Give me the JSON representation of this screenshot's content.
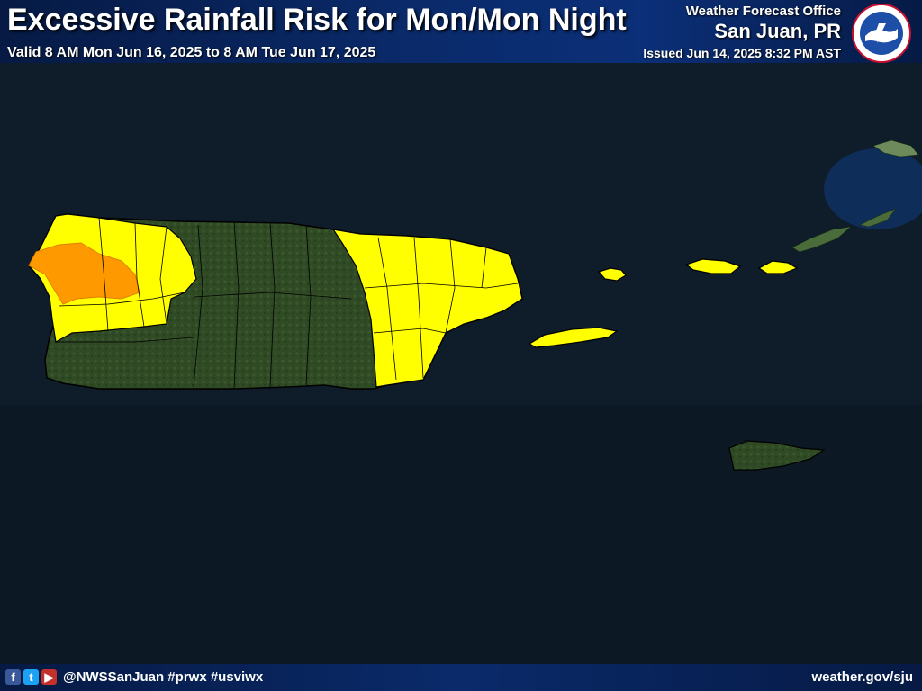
{
  "header": {
    "title": "Excessive Rainfall Risk for Mon/Mon Night",
    "valid": "Valid 8 AM Mon Jun 16, 2025 to 8 AM Tue Jun 17, 2025",
    "office_label": "Weather Forecast Office",
    "office_city": "San Juan, PR",
    "issued": "Issued Jun 14, 2025 8:32 PM AST",
    "logo_icon": "nws-logo-icon"
  },
  "map": {
    "risk_colors": {
      "marginal": "#ffff00",
      "slight": "#ff9900",
      "none": "#2d4a22"
    },
    "ocean_color": "#0f1c2a"
  },
  "footer": {
    "social_icons": [
      "facebook-icon",
      "twitter-icon",
      "youtube-icon"
    ],
    "handle": "@NWSSanJuan #prwx #usviwx",
    "url": "weather.gov/sju"
  }
}
